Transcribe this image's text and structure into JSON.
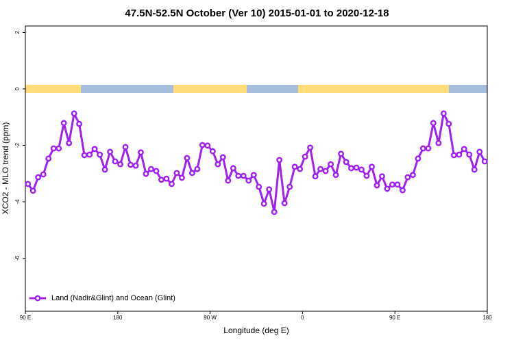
{
  "chart_data": {
    "type": "line",
    "title": "47.5N-52.5N October (Ver 10)   2015-01-01 to 2020-12-18",
    "x_label": "Longitude (deg E)",
    "y_label": "XCO2 - MLO trend (ppm)",
    "xlim": [
      90,
      540
    ],
    "ylim": [
      -7.88,
      2.23
    ],
    "xticks": [
      {
        "value": 90,
        "label": "90 E"
      },
      180,
      {
        "value": 270,
        "label": "90 W"
      },
      {
        "value": 360,
        "label": "0"
      },
      {
        "value": 450,
        "label": "90 E"
      },
      {
        "value": 540,
        "label": "180"
      }
    ],
    "yticks": [
      2,
      0,
      -2,
      -4,
      -6
    ],
    "grid": false,
    "legend": "bottom-left",
    "x": [
      92.5,
      97.5,
      102.5,
      107.5,
      112.5,
      117.5,
      122.5,
      127.5,
      132.5,
      137.5,
      142.5,
      147.5,
      152.5,
      157.5,
      162.5,
      167.5,
      172.5,
      177.5,
      182.5,
      187.5,
      192.5,
      197.5,
      202.5,
      207.5,
      212.5,
      217.5,
      222.5,
      227.5,
      232.5,
      237.5,
      242.5,
      247.5,
      252.5,
      257.5,
      262.5,
      267.5,
      272.5,
      277.5,
      282.5,
      287.5,
      292.5,
      297.5,
      302.5,
      307.5,
      312.5,
      317.5,
      322.5,
      327.5,
      332.5,
      337.5,
      342.5,
      347.5,
      352.5,
      357.5,
      362.5,
      367.5,
      372.5,
      377.5,
      382.5,
      387.5,
      392.5,
      397.5,
      402.5,
      407.5,
      412.5,
      417.5,
      422.5,
      427.5,
      432.5,
      437.5,
      442.5,
      447.5,
      452.5,
      457.5,
      462.5,
      467.5,
      472.5,
      477.5,
      482.5,
      487.5,
      492.5,
      497.5,
      502.5,
      507.5,
      512.5,
      517.5,
      522.5,
      527.5,
      532.5,
      537.5
    ],
    "series": [
      {
        "name": "Land (Nadir&Glint) and Ocean (Glint)",
        "color": "#a020f0",
        "values": [
          -3.37,
          -3.61,
          -3.13,
          -3.03,
          -2.47,
          -2.11,
          -2.11,
          -1.21,
          -1.92,
          -0.87,
          -1.24,
          -2.35,
          -2.33,
          -2.13,
          -2.33,
          -2.86,
          -2.23,
          -2.57,
          -2.67,
          -2.06,
          -2.69,
          -2.72,
          -2.25,
          -3.01,
          -2.84,
          -2.91,
          -3.22,
          -3.18,
          -3.37,
          -2.98,
          -3.15,
          -2.45,
          -2.98,
          -2.84,
          -1.99,
          -2.01,
          -2.21,
          -2.67,
          -2.42,
          -3.25,
          -2.81,
          -3.08,
          -3.08,
          -3.25,
          -3.05,
          -3.47,
          -4.07,
          -3.56,
          -4.36,
          -2.52,
          -4.05,
          -3.47,
          -2.76,
          -2.84,
          -2.4,
          -2.08,
          -3.1,
          -2.84,
          -2.91,
          -2.67,
          -3.05,
          -2.3,
          -2.59,
          -2.81,
          -2.79,
          -2.86,
          -3.08,
          -2.76,
          -3.42,
          -3.1,
          -3.54,
          -3.39,
          -3.39,
          -3.59,
          -3.13,
          -3.05,
          -2.47,
          -2.11,
          -2.11,
          -1.21,
          -1.92,
          -0.87,
          -1.24,
          -2.35,
          -2.33,
          -2.13,
          -2.33,
          -2.86,
          -2.23,
          -2.57
        ]
      }
    ]
  }
}
